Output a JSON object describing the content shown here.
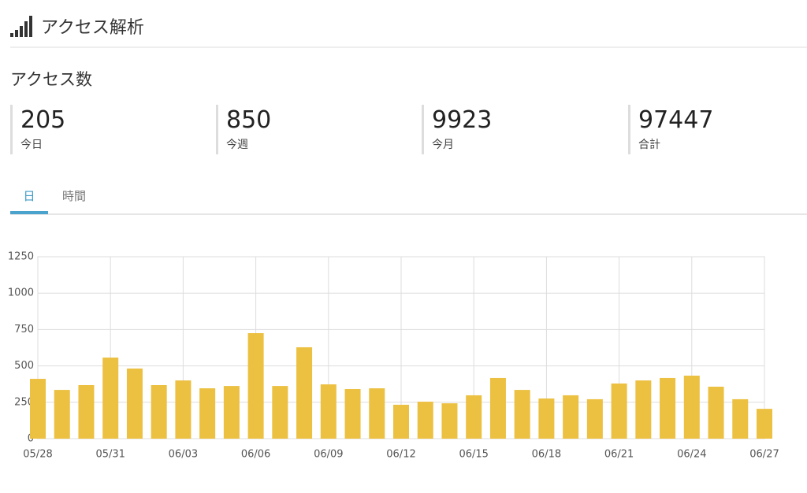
{
  "header": {
    "title": "アクセス解析"
  },
  "section_title": "アクセス数",
  "stats": [
    {
      "value": 205,
      "label": "今日"
    },
    {
      "value": 850,
      "label": "今週"
    },
    {
      "value": 9923,
      "label": "今月"
    },
    {
      "value": 97447,
      "label": "合計"
    }
  ],
  "tabs": [
    {
      "label": "日",
      "active": true
    },
    {
      "label": "時間",
      "active": false
    }
  ],
  "chart_data": {
    "type": "bar",
    "categories": [
      "05/28",
      null,
      null,
      "05/31",
      null,
      null,
      "06/03",
      null,
      null,
      "06/06",
      null,
      null,
      "06/09",
      null,
      null,
      "06/12",
      null,
      null,
      "06/15",
      null,
      null,
      "06/18",
      null,
      null,
      "06/21",
      null,
      null,
      "06/24",
      null,
      null,
      "06/27"
    ],
    "values": [
      411,
      335,
      368,
      557,
      482,
      368,
      400,
      346,
      362,
      725,
      362,
      628,
      373,
      341,
      346,
      233,
      254,
      243,
      298,
      417,
      335,
      276,
      298,
      271,
      379,
      400,
      417,
      433,
      357,
      271,
      205
    ],
    "color": "#ecc040",
    "ylim": [
      0,
      1250
    ],
    "yticks": [
      0,
      250,
      500,
      750,
      1000,
      1250
    ],
    "grid": true
  }
}
